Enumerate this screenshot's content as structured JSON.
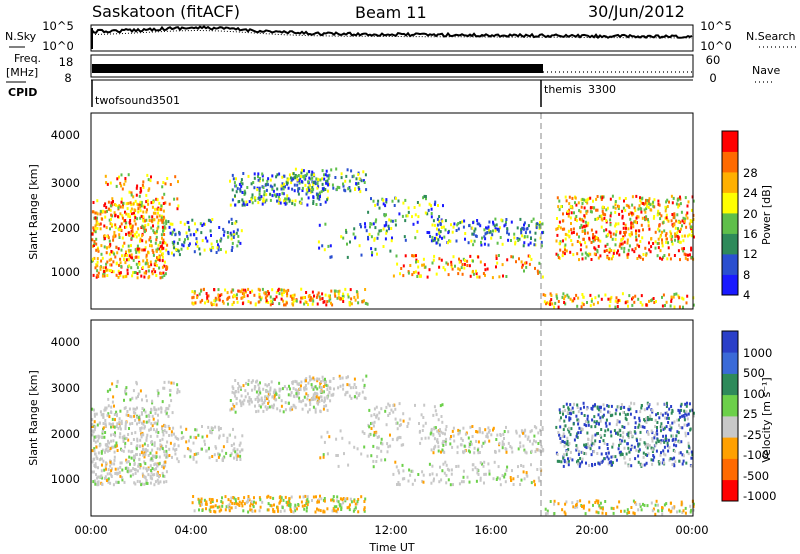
{
  "header": {
    "station": "Saskatoon (fitACF)",
    "beam": "Beam 11",
    "date": "30/Jun/2012"
  },
  "noise_panel": {
    "left_label": "N.Sky",
    "right_label": "N.Search",
    "left_ticks": [
      "10^5",
      "10^0"
    ],
    "right_ticks": [
      "10^5",
      "10^0"
    ]
  },
  "freq_panel": {
    "left_label_1": "Freq.",
    "left_label_2": "[MHz]",
    "left_ticks": [
      "18",
      "8"
    ],
    "right_label": "Nave",
    "right_ticks": [
      "60",
      "0"
    ]
  },
  "cpid_panel": {
    "label": "CPID",
    "segments": [
      {
        "name": "twofsound",
        "id": "3501",
        "start_hour": 0
      },
      {
        "name": "themis",
        "id": "3300",
        "start_hour": 18
      }
    ]
  },
  "power_panel": {
    "ylabel": "Slant Range [km]",
    "yticks": [
      "4000",
      "3000",
      "2000",
      "1000"
    ],
    "colorbar_label": "Power [dB]",
    "colorbar_ticks": [
      "28",
      "24",
      "20",
      "16",
      "12",
      "8",
      "4"
    ],
    "colors": [
      "#1a1aff",
      "#2a4fd0",
      "#2e8a5a",
      "#5fbf4a",
      "#ffff00",
      "#ffb000",
      "#ff6a00",
      "#ff0000"
    ]
  },
  "velocity_panel": {
    "ylabel": "Slant Range [km]",
    "yticks": [
      "4000",
      "3000",
      "2000",
      "1000"
    ],
    "colorbar_label": "Velocity [m s⁻¹]",
    "colorbar_ticks": [
      "1000",
      "500",
      "100",
      "25",
      "-25",
      "-100",
      "-500",
      "-1000"
    ],
    "colors": [
      "#2a3fc8",
      "#3a6ad8",
      "#2e8a5a",
      "#6cd04a",
      "#c8c8c8",
      "#ffa000",
      "#ff6a00",
      "#ff0000"
    ]
  },
  "xaxis": {
    "label": "Time UT",
    "ticks": [
      "00:00",
      "04:00",
      "08:00",
      "12:00",
      "16:00",
      "20:00",
      "00:00"
    ]
  },
  "chart_data": {
    "type": "heatmap",
    "title": "Saskatoon (fitACF) Beam 11 30/Jun/2012",
    "x": "Time UT (hours)",
    "xlim": [
      0,
      24
    ],
    "ylim_km": [
      180,
      4500
    ],
    "panels": [
      "N.Sky/N.Search",
      "Freq./Nave",
      "CPID",
      "Power [dB]",
      "Velocity [m s-1]"
    ],
    "power_range_db": [
      0,
      30
    ],
    "velocity_range_ms": [
      -1000,
      1000
    ],
    "cpid_change_hour": 18
  }
}
